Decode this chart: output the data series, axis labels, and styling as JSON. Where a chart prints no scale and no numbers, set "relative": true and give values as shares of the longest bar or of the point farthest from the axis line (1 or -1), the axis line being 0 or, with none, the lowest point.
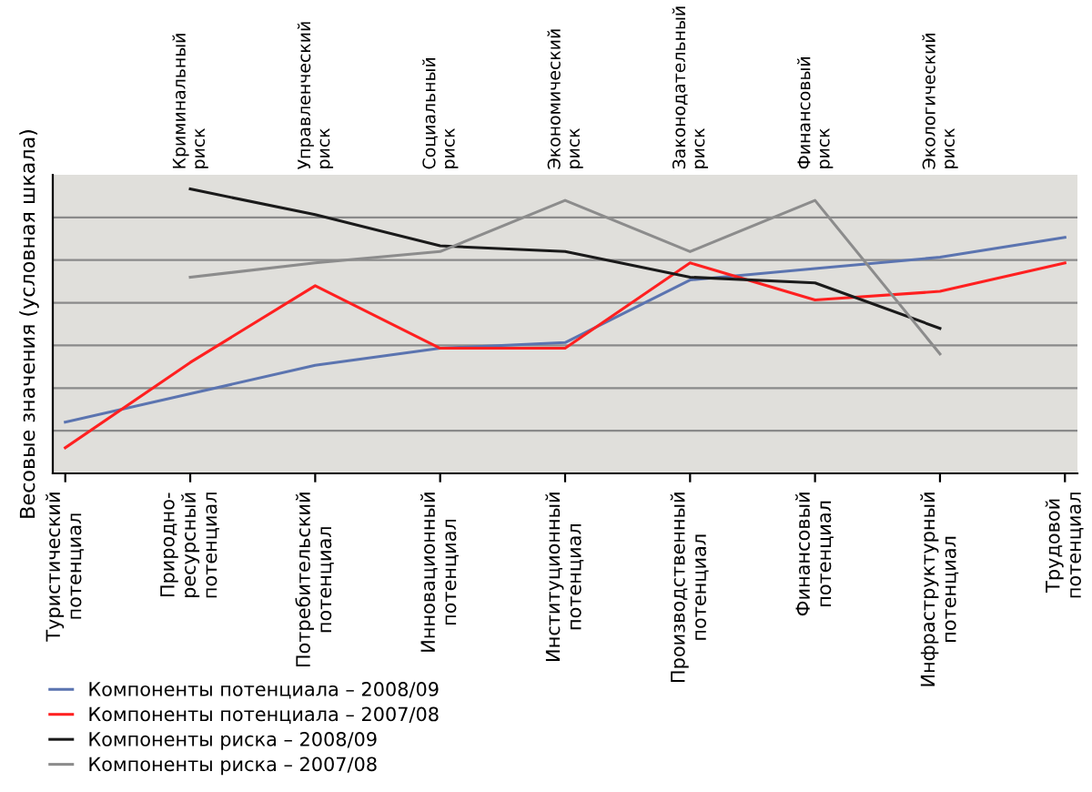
{
  "chart_data": {
    "type": "line",
    "relative": true,
    "ylabel": "Весовые значения (условная шкала)",
    "categories": [
      "Туристический\nпотенциал",
      "Природно-\nресурсный\nпотенциал",
      "Потребительский\nпотенциал",
      "Инновационный\nпотенциал",
      "Институционный\nпотенциал",
      "Производственный\nпотенциал",
      "Финансовый\nпотенциал",
      "Инфраструктурный\nпотенциал",
      "Трудовой\nпотенциал"
    ],
    "annotations": [
      "Криминальный\nриск",
      "Управленческий\nриск",
      "Социальный\nриск",
      "Экономический\nриск",
      "Законодательный\nриск",
      "Финансовый\nриск",
      "Экологический\nриск"
    ],
    "series": [
      {
        "name": "Компоненты потенциала – 2008/09",
        "color": "#5b74b0",
        "values": [
          0.18,
          0.28,
          0.38,
          0.44,
          0.46,
          0.68,
          0.72,
          0.76,
          0.83
        ]
      },
      {
        "name": "Компоненты потенциала – 2007/08",
        "color": "#ff2020",
        "values": [
          0.09,
          0.39,
          0.66,
          0.44,
          0.44,
          0.74,
          0.61,
          0.64,
          0.74
        ]
      },
      {
        "name": "Компоненты риска – 2008/09",
        "color": "#1a1a1a",
        "values": [
          null,
          1.0,
          0.91,
          0.8,
          0.78,
          0.69,
          0.67,
          0.51,
          null
        ]
      },
      {
        "name": "Компоненты риска – 2007/08",
        "color": "#8c8c8c",
        "values": [
          null,
          0.69,
          0.74,
          0.78,
          0.96,
          0.78,
          0.96,
          0.42,
          null
        ]
      }
    ],
    "grid": "y",
    "legend": "bottom left",
    "marker": "none",
    "line_style": "solid"
  }
}
